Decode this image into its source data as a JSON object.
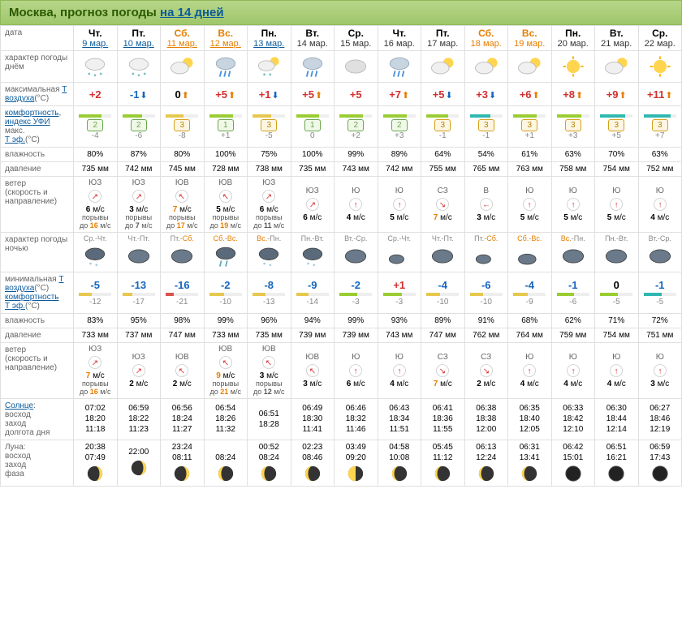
{
  "header": {
    "city": "Москва, прогноз погоды",
    "link": "на 14 дней"
  },
  "labels": {
    "date": "дата",
    "dayWeather": "характер погоды днём",
    "maxTemp1": "максимальная",
    "maxTemp2": "Т воздуха",
    "maxTemp3": "(°C)",
    "comfort": "комфортность",
    "effTemp1": "индекс УФИ",
    "effTemp2": "макс.",
    "effTemp3": "Т эф.",
    "effTemp4": "(°C)",
    "humidity": "влажность",
    "pressure": "давление",
    "wind": "ветер",
    "windSub": "(скорость и направление)",
    "nightWeather": "характер погоды ночью",
    "minTemp1": "минимальная",
    "minTemp2": "Т воздуха",
    "minTemp3": "(°C)",
    "nightComfort": "комфортность",
    "nightEffTemp1": "Т эф.",
    "nightEffTemp2": "(°C)",
    "nightHumidity": "влажность",
    "nightPressure": "давление",
    "nightWind": "ветер",
    "nightWindSub": "(скорость и направление)",
    "sun": "Солнце",
    "sunrise": "восход",
    "sunset": "заход",
    "daylen": "долгота дня",
    "moon": "Луна:",
    "moonrise": "восход",
    "moonset": "заход",
    "phase": "фаза"
  },
  "days": [
    {
      "dow": "Чт.",
      "date": "9 мар.",
      "link": true,
      "weekend": false,
      "dayIcon": "snow",
      "temp": "+2",
      "arrow": "",
      "uv": "2",
      "uvClass": "",
      "effTemp": "-4",
      "humidity": "80%",
      "pressure": "735 мм",
      "windDir": "ЮЗ",
      "windArrow": "↗",
      "windSpeed": "6",
      "windHi": false,
      "gust": "16",
      "gustHi": true,
      "nightTrans": "Ср.-Чт.",
      "nightIcon": "night-snow",
      "minTemp": "-5",
      "nEffTemp": "-12",
      "nHumidity": "83%",
      "nPressure": "733 мм",
      "nWindDir": "ЮЗ",
      "nWindArrow": "↗",
      "nWindSpeed": "7",
      "nWindHi": true,
      "nGust": "16",
      "nGustHi": true,
      "sunrise": "07:02",
      "sunset": "18:20",
      "daylen": "11:18",
      "moonrise": "20:38",
      "moonset": "07:49",
      "moon": "wax-gib",
      "comfortFill": "70",
      "comfortColor": "#9acd32",
      "nComfortFill": "40",
      "nComfortColor": "#e6c84f"
    },
    {
      "dow": "Пт.",
      "date": "10 мар.",
      "link": true,
      "weekend": false,
      "dayIcon": "snow",
      "temp": "-1",
      "arrow": "down",
      "uv": "2",
      "uvClass": "",
      "effTemp": "-6",
      "humidity": "87%",
      "pressure": "742 мм",
      "windDir": "ЮЗ",
      "windArrow": "↗",
      "windSpeed": "3",
      "windHi": false,
      "gust": "7",
      "gustHi": false,
      "nightTrans": "Чт.-Пт.",
      "nightIcon": "night-cloud",
      "minTemp": "-13",
      "nEffTemp": "-17",
      "nHumidity": "95%",
      "nPressure": "737 мм",
      "nWindDir": "ЮЗ",
      "nWindArrow": "↗",
      "nWindSpeed": "2",
      "nWindHi": false,
      "nGust": "",
      "nGustHi": false,
      "sunrise": "06:59",
      "sunset": "18:22",
      "daylen": "11:23",
      "moonrise": "22:00",
      "moonset": "",
      "moon": "wax-gib",
      "comfortFill": "60",
      "comfortColor": "#9acd32",
      "nComfortFill": "30",
      "nComfortColor": "#e6c84f"
    },
    {
      "dow": "Сб.",
      "date": "11 мар.",
      "link": true,
      "weekend": true,
      "dayIcon": "partly",
      "temp": "0",
      "arrow": "up",
      "uv": "3",
      "uvClass": "y",
      "effTemp": "-8",
      "humidity": "80%",
      "pressure": "745 мм",
      "windDir": "ЮВ",
      "windArrow": "↖",
      "windSpeed": "7",
      "windHi": true,
      "gust": "17",
      "gustHi": true,
      "nightTrans": "Пт.-Сб.",
      "nightIcon": "night-cloud",
      "minTemp": "-16",
      "nEffTemp": "-21",
      "nHumidity": "98%",
      "nPressure": "747 мм",
      "nWindDir": "ЮВ",
      "nWindArrow": "↖",
      "nWindSpeed": "2",
      "nWindHi": false,
      "nGust": "",
      "nGustHi": false,
      "sunrise": "06:56",
      "sunset": "18:24",
      "daylen": "11:27",
      "moonrise": "23:24",
      "moonset": "08:11",
      "moon": "wax-gib",
      "comfortFill": "55",
      "comfortColor": "#e6c84f",
      "nComfortFill": "25",
      "nComfortColor": "#d9534f"
    },
    {
      "dow": "Вс.",
      "date": "12 мар.",
      "link": true,
      "weekend": true,
      "dayIcon": "rain",
      "temp": "+5",
      "arrow": "up",
      "uv": "1",
      "uvClass": "",
      "effTemp": "+1",
      "humidity": "100%",
      "pressure": "728 мм",
      "windDir": "ЮВ",
      "windArrow": "↖",
      "windSpeed": "5",
      "windHi": false,
      "gust": "19",
      "gustHi": true,
      "nightTrans": "Сб.-Вс.",
      "nightIcon": "night-rain",
      "minTemp": "-2",
      "nEffTemp": "-10",
      "nHumidity": "99%",
      "nPressure": "733 мм",
      "nWindDir": "ЮВ",
      "nWindArrow": "↖",
      "nWindSpeed": "9",
      "nWindHi": true,
      "nGust": "21",
      "nGustHi": true,
      "sunrise": "06:54",
      "sunset": "18:26",
      "daylen": "11:32",
      "moonrise": "",
      "moonset": "08:24",
      "moon": "wan-gib",
      "comfortFill": "72",
      "comfortColor": "#9acd32",
      "nComfortFill": "45",
      "nComfortColor": "#e6c84f"
    },
    {
      "dow": "Пн.",
      "date": "13 мар.",
      "link": true,
      "weekend": false,
      "dayIcon": "snow-sun",
      "temp": "+1",
      "arrow": "down",
      "uv": "3",
      "uvClass": "y",
      "effTemp": "-5",
      "humidity": "75%",
      "pressure": "738 мм",
      "windDir": "ЮЗ",
      "windArrow": "↗",
      "windSpeed": "6",
      "windHi": false,
      "gust": "11",
      "gustHi": false,
      "nightTrans": "Вс.-Пн.",
      "nightIcon": "night-snow",
      "minTemp": "-8",
      "nEffTemp": "-13",
      "nHumidity": "96%",
      "nPressure": "735 мм",
      "nWindDir": "ЮВ",
      "nWindArrow": "↖",
      "nWindSpeed": "3",
      "nWindHi": false,
      "nGust": "12",
      "nGustHi": false,
      "sunrise": "06:51",
      "sunset": "18:28",
      "daylen": "",
      "moonrise": "00:52",
      "moonset": "08:24",
      "moon": "wan-gib",
      "comfortFill": "58",
      "comfortColor": "#e6c84f",
      "nComfortFill": "40",
      "nComfortColor": "#e6c84f"
    },
    {
      "dow": "Вт.",
      "date": "14 мар.",
      "link": false,
      "weekend": false,
      "dayIcon": "rain",
      "temp": "+5",
      "arrow": "up",
      "uv": "1",
      "uvClass": "",
      "effTemp": "0",
      "humidity": "100%",
      "pressure": "735 мм",
      "windDir": "ЮЗ",
      "windArrow": "↗",
      "windSpeed": "6",
      "windHi": false,
      "gust": "",
      "gustHi": false,
      "nightTrans": "Пн.-Вт.",
      "nightIcon": "night-snow",
      "minTemp": "-9",
      "nEffTemp": "-14",
      "nHumidity": "94%",
      "nPressure": "739 мм",
      "nWindDir": "ЮВ",
      "nWindArrow": "↖",
      "nWindSpeed": "3",
      "nWindHi": false,
      "nGust": "",
      "nGustHi": false,
      "sunrise": "06:49",
      "sunset": "18:30",
      "daylen": "11:41",
      "moonrise": "02:23",
      "moonset": "08:46",
      "moon": "wan-gib",
      "comfortFill": "70",
      "comfortColor": "#9acd32",
      "nComfortFill": "38",
      "nComfortColor": "#e6c84f"
    },
    {
      "dow": "Ср.",
      "date": "15 мар.",
      "link": false,
      "weekend": false,
      "dayIcon": "cloud",
      "temp": "+5",
      "arrow": "",
      "uv": "2",
      "uvClass": "",
      "effTemp": "+2",
      "humidity": "99%",
      "pressure": "743 мм",
      "windDir": "Ю",
      "windArrow": "↑",
      "windSpeed": "4",
      "windHi": false,
      "gust": "",
      "gustHi": false,
      "nightTrans": "Вт.-Ср.",
      "nightIcon": "night-cloud",
      "minTemp": "-2",
      "nEffTemp": "-3",
      "nHumidity": "99%",
      "nPressure": "739 мм",
      "nWindDir": "Ю",
      "nWindArrow": "↑",
      "nWindSpeed": "6",
      "nWindHi": false,
      "nGust": "",
      "nGustHi": false,
      "sunrise": "06:46",
      "sunset": "18:32",
      "daylen": "11:46",
      "moonrise": "03:49",
      "moonset": "09:20",
      "moon": "last-q",
      "comfortFill": "72",
      "comfortColor": "#9acd32",
      "nComfortFill": "55",
      "nComfortColor": "#9acd32"
    },
    {
      "dow": "Чт.",
      "date": "16 мар.",
      "link": false,
      "weekend": false,
      "dayIcon": "rain",
      "temp": "+7",
      "arrow": "up",
      "uv": "2",
      "uvClass": "",
      "effTemp": "+3",
      "humidity": "89%",
      "pressure": "742 мм",
      "windDir": "Ю",
      "windArrow": "↑",
      "windSpeed": "5",
      "windHi": false,
      "gust": "",
      "gustHi": false,
      "nightTrans": "Ср.-Чт.",
      "nightIcon": "night-moon",
      "minTemp": "+1",
      "nEffTemp": "-3",
      "nHumidity": "93%",
      "nPressure": "743 мм",
      "nWindDir": "Ю",
      "nWindArrow": "↑",
      "nWindSpeed": "4",
      "nWindHi": false,
      "nGust": "",
      "nGustHi": false,
      "sunrise": "06:43",
      "sunset": "18:34",
      "daylen": "11:51",
      "moonrise": "04:58",
      "moonset": "10:08",
      "moon": "wan-cres",
      "comfortFill": "74",
      "comfortColor": "#9acd32",
      "nComfortFill": "58",
      "nComfortColor": "#9acd32"
    },
    {
      "dow": "Пт.",
      "date": "17 мар.",
      "link": false,
      "weekend": false,
      "dayIcon": "partly",
      "temp": "+5",
      "arrow": "down",
      "uv": "3",
      "uvClass": "y",
      "effTemp": "-1",
      "humidity": "64%",
      "pressure": "755 мм",
      "windDir": "СЗ",
      "windArrow": "↘",
      "windSpeed": "7",
      "windHi": true,
      "gust": "",
      "gustHi": false,
      "nightTrans": "Чт.-Пт.",
      "nightIcon": "night-cloud",
      "minTemp": "-4",
      "nEffTemp": "-10",
      "nHumidity": "89%",
      "nPressure": "747 мм",
      "nWindDir": "СЗ",
      "nWindArrow": "↘",
      "nWindSpeed": "7",
      "nWindHi": true,
      "nGust": "",
      "nGustHi": false,
      "sunrise": "06:41",
      "sunset": "18:36",
      "daylen": "11:55",
      "moonrise": "05:45",
      "moonset": "11:12",
      "moon": "wan-cres",
      "comfortFill": "68",
      "comfortColor": "#9acd32",
      "nComfortFill": "42",
      "nComfortColor": "#e6c84f"
    },
    {
      "dow": "Сб.",
      "date": "18 мар.",
      "link": false,
      "weekend": true,
      "dayIcon": "partly",
      "temp": "+3",
      "arrow": "down",
      "uv": "3",
      "uvClass": "y",
      "effTemp": "-1",
      "humidity": "54%",
      "pressure": "765 мм",
      "windDir": "В",
      "windArrow": "←",
      "windSpeed": "3",
      "windHi": false,
      "gust": "",
      "gustHi": false,
      "nightTrans": "Пт.-Сб.",
      "nightIcon": "night-moon",
      "minTemp": "-6",
      "nEffTemp": "-10",
      "nHumidity": "91%",
      "nPressure": "762 мм",
      "nWindDir": "СЗ",
      "nWindArrow": "↘",
      "nWindSpeed": "2",
      "nWindHi": false,
      "nGust": "",
      "nGustHi": false,
      "sunrise": "06:38",
      "sunset": "18:38",
      "daylen": "12:00",
      "moonrise": "06:13",
      "moonset": "12:24",
      "moon": "wan-cres",
      "comfortFill": "62",
      "comfortColor": "#30b8b0",
      "nComfortFill": "40",
      "nComfortColor": "#e6c84f"
    },
    {
      "dow": "Вс.",
      "date": "19 мар.",
      "link": false,
      "weekend": true,
      "dayIcon": "partly",
      "temp": "+6",
      "arrow": "up",
      "uv": "3",
      "uvClass": "y",
      "effTemp": "+1",
      "humidity": "61%",
      "pressure": "763 мм",
      "windDir": "Ю",
      "windArrow": "↑",
      "windSpeed": "5",
      "windHi": false,
      "gust": "",
      "gustHi": false,
      "nightTrans": "Сб.-Вс.",
      "nightIcon": "night-moon-cloud",
      "minTemp": "-4",
      "nEffTemp": "-9",
      "nHumidity": "68%",
      "nPressure": "764 мм",
      "nWindDir": "Ю",
      "nWindArrow": "↑",
      "nWindSpeed": "4",
      "nWindHi": false,
      "nGust": "",
      "nGustHi": false,
      "sunrise": "06:35",
      "sunset": "18:40",
      "daylen": "12:05",
      "moonrise": "06:31",
      "moonset": "13:41",
      "moon": "wan-cres",
      "comfortFill": "72",
      "comfortColor": "#9acd32",
      "nComfortFill": "44",
      "nComfortColor": "#e6c84f"
    },
    {
      "dow": "Пн.",
      "date": "20 мар.",
      "link": false,
      "weekend": false,
      "dayIcon": "sunny",
      "temp": "+8",
      "arrow": "up",
      "uv": "3",
      "uvClass": "y",
      "effTemp": "+3",
      "humidity": "63%",
      "pressure": "758 мм",
      "windDir": "Ю",
      "windArrow": "↑",
      "windSpeed": "5",
      "windHi": false,
      "gust": "",
      "gustHi": false,
      "nightTrans": "Вс.-Пн.",
      "nightIcon": "night-cloud",
      "minTemp": "-1",
      "nEffTemp": "-6",
      "nHumidity": "62%",
      "nPressure": "759 мм",
      "nWindDir": "Ю",
      "nWindArrow": "↑",
      "nWindSpeed": "4",
      "nWindHi": false,
      "nGust": "",
      "nGustHi": false,
      "sunrise": "06:33",
      "sunset": "18:42",
      "daylen": "12:10",
      "moonrise": "06:42",
      "moonset": "15:01",
      "moon": "new",
      "comfortFill": "76",
      "comfortColor": "#9acd32",
      "nComfortFill": "52",
      "nComfortColor": "#9acd32"
    },
    {
      "dow": "Вт.",
      "date": "21 мар.",
      "link": false,
      "weekend": false,
      "dayIcon": "partly",
      "temp": "+9",
      "arrow": "up",
      "uv": "3",
      "uvClass": "y",
      "effTemp": "+5",
      "humidity": "70%",
      "pressure": "754 мм",
      "windDir": "Ю",
      "windArrow": "↑",
      "windSpeed": "5",
      "windHi": false,
      "gust": "",
      "gustHi": false,
      "nightTrans": "Пн.-Вт.",
      "nightIcon": "night-cloud",
      "minTemp": "0",
      "nEffTemp": "-5",
      "nHumidity": "71%",
      "nPressure": "754 мм",
      "nWindDir": "Ю",
      "nWindArrow": "↑",
      "nWindSpeed": "4",
      "nWindHi": false,
      "nGust": "",
      "nGustHi": false,
      "sunrise": "06:30",
      "sunset": "18:44",
      "daylen": "12:14",
      "moonrise": "06:51",
      "moonset": "16:21",
      "moon": "new",
      "comfortFill": "78",
      "comfortColor": "#30b8b0",
      "nComfortFill": "55",
      "nComfortColor": "#9acd32"
    },
    {
      "dow": "Ср.",
      "date": "22 мар.",
      "link": false,
      "weekend": false,
      "dayIcon": "sunny",
      "temp": "+11",
      "arrow": "up",
      "uv": "3",
      "uvClass": "y",
      "effTemp": "+7",
      "humidity": "63%",
      "pressure": "752 мм",
      "windDir": "Ю",
      "windArrow": "↑",
      "windSpeed": "4",
      "windHi": false,
      "gust": "",
      "gustHi": false,
      "nightTrans": "Вт.-Ср.",
      "nightIcon": "night-cloud",
      "minTemp": "-1",
      "nEffTemp": "-5",
      "nHumidity": "72%",
      "nPressure": "751 мм",
      "nWindDir": "Ю",
      "nWindArrow": "↑",
      "nWindSpeed": "3",
      "nWindHi": false,
      "nGust": "",
      "nGustHi": false,
      "sunrise": "06:27",
      "sunset": "18:46",
      "daylen": "12:19",
      "moonrise": "06:59",
      "moonset": "17:43",
      "moon": "new",
      "comfortFill": "82",
      "comfortColor": "#30b8b0",
      "nComfortFill": "56",
      "nComfortColor": "#30b8b0"
    }
  ]
}
